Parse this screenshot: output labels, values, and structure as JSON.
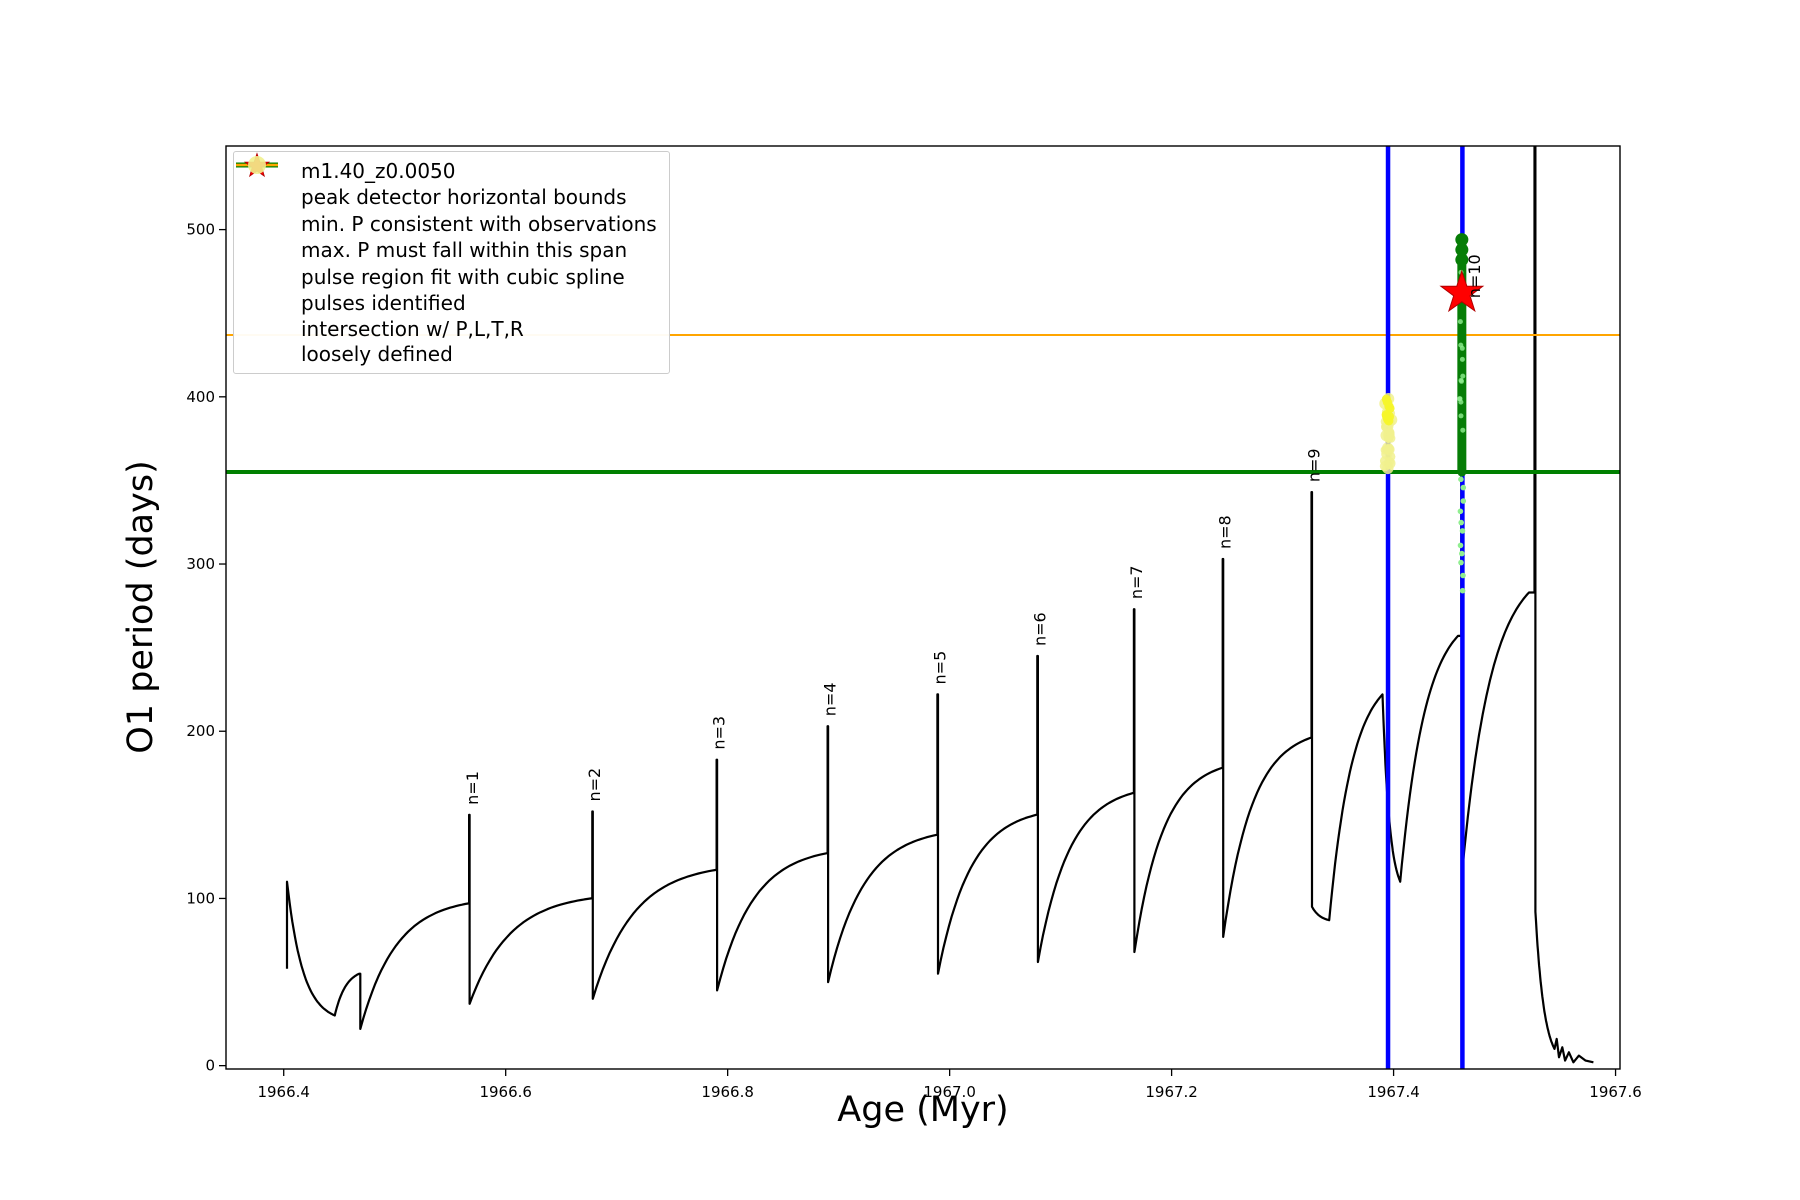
{
  "chart_data": {
    "type": "line",
    "title": "",
    "xlabel": "Age (Myr)",
    "ylabel": "O1 period (days)",
    "xlim": [
      1966.348,
      1967.604
    ],
    "ylim": [
      -2,
      550
    ],
    "x_ticks": [
      1966.4,
      1966.6,
      1966.8,
      1967.0,
      1967.2,
      1967.4,
      1967.6
    ],
    "y_ticks": [
      0,
      100,
      200,
      300,
      400,
      500
    ],
    "grid": false,
    "legend_position": "upper left",
    "legend": [
      {
        "label": "m1.40_z0.0050",
        "marker": "line-dot",
        "color": "#000000"
      },
      {
        "label": "peak detector horizontal bounds",
        "marker": "thick-line",
        "color": "#0000ff"
      },
      {
        "label": "min. P consistent with observations",
        "marker": "thick-line",
        "color": "#008000"
      },
      {
        "label": "max. P must fall within this span",
        "marker": "line",
        "color": "#ffa500"
      },
      {
        "label": "pulse region fit with cubic spline",
        "marker": "dot-small",
        "color": "#90ee90"
      },
      {
        "label": "pulses identified",
        "marker": "star",
        "color": "#ff0000"
      },
      {
        "label": "intersection w/ P,L,T,R\nloosely defined",
        "marker": "dot-large",
        "color": "#f1f18e"
      }
    ],
    "series": {
      "main": {
        "name": "m1.40_z0.0050",
        "color": "#000000",
        "linewidth": 2.2,
        "segments": [
          {
            "t": "v",
            "x": 1966.403,
            "a": 58,
            "b": 110
          },
          {
            "t": "e",
            "x0": 1966.403,
            "y0": 110,
            "x1": 1966.446,
            "y1": 30,
            "k": 3
          },
          {
            "t": "e",
            "x0": 1966.446,
            "y0": 30,
            "x1": 1966.468,
            "y1": 55,
            "k": 2.2
          },
          {
            "t": "v",
            "x": 1966.469,
            "a": 55,
            "b": 22
          },
          {
            "t": "e",
            "x0": 1966.469,
            "y0": 22,
            "x1": 1966.566,
            "y1": 97,
            "k": 3
          },
          {
            "t": "v",
            "x": 1966.567,
            "a": 97,
            "b": 150
          },
          {
            "t": "v",
            "x": 1966.5675,
            "a": 150,
            "b": 37
          },
          {
            "t": "e",
            "x0": 1966.5675,
            "y0": 37,
            "x1": 1966.677,
            "y1": 100,
            "k": 3
          },
          {
            "t": "v",
            "x": 1966.678,
            "a": 100,
            "b": 152
          },
          {
            "t": "v",
            "x": 1966.6785,
            "a": 152,
            "b": 40
          },
          {
            "t": "e",
            "x0": 1966.6785,
            "y0": 40,
            "x1": 1966.789,
            "y1": 117,
            "k": 3
          },
          {
            "t": "v",
            "x": 1966.79,
            "a": 117,
            "b": 183
          },
          {
            "t": "v",
            "x": 1966.7905,
            "a": 183,
            "b": 45
          },
          {
            "t": "e",
            "x0": 1966.7905,
            "y0": 45,
            "x1": 1966.889,
            "y1": 127,
            "k": 3
          },
          {
            "t": "v",
            "x": 1966.89,
            "a": 127,
            "b": 203
          },
          {
            "t": "v",
            "x": 1966.8905,
            "a": 203,
            "b": 50
          },
          {
            "t": "e",
            "x0": 1966.8905,
            "y0": 50,
            "x1": 1966.988,
            "y1": 138,
            "k": 3
          },
          {
            "t": "v",
            "x": 1966.989,
            "a": 138,
            "b": 222
          },
          {
            "t": "v",
            "x": 1966.9895,
            "a": 222,
            "b": 55
          },
          {
            "t": "e",
            "x0": 1966.9895,
            "y0": 55,
            "x1": 1967.078,
            "y1": 150,
            "k": 3
          },
          {
            "t": "v",
            "x": 1967.079,
            "a": 150,
            "b": 245
          },
          {
            "t": "v",
            "x": 1967.0795,
            "a": 245,
            "b": 62
          },
          {
            "t": "e",
            "x0": 1967.0795,
            "y0": 62,
            "x1": 1967.165,
            "y1": 163,
            "k": 3
          },
          {
            "t": "v",
            "x": 1967.166,
            "a": 163,
            "b": 273
          },
          {
            "t": "v",
            "x": 1967.1665,
            "a": 273,
            "b": 68
          },
          {
            "t": "e",
            "x0": 1967.1665,
            "y0": 68,
            "x1": 1967.245,
            "y1": 178,
            "k": 3
          },
          {
            "t": "v",
            "x": 1967.246,
            "a": 178,
            "b": 303
          },
          {
            "t": "v",
            "x": 1967.2465,
            "a": 303,
            "b": 77
          },
          {
            "t": "e",
            "x0": 1967.2465,
            "y0": 77,
            "x1": 1967.325,
            "y1": 196,
            "k": 3
          },
          {
            "t": "v",
            "x": 1967.326,
            "a": 196,
            "b": 343
          },
          {
            "t": "v",
            "x": 1967.3265,
            "a": 343,
            "b": 95
          },
          {
            "t": "e",
            "x0": 1967.3265,
            "y0": 95,
            "x1": 1967.342,
            "y1": 87,
            "k": 2
          },
          {
            "t": "e",
            "x0": 1967.342,
            "y0": 87,
            "x1": 1967.39,
            "y1": 222,
            "k": 2.3
          },
          {
            "t": "e",
            "x0": 1967.39,
            "y0": 222,
            "x1": 1967.406,
            "y1": 110,
            "k": 2.5
          },
          {
            "t": "e",
            "x0": 1967.406,
            "y0": 110,
            "x1": 1967.458,
            "y1": 257,
            "k": 2.3
          },
          {
            "t": "v",
            "x": 1967.461,
            "a": 257,
            "b": 497
          },
          {
            "t": "v",
            "x": 1967.462,
            "a": 497,
            "b": 117
          },
          {
            "t": "e",
            "x0": 1967.462,
            "y0": 117,
            "x1": 1967.522,
            "y1": 283,
            "k": 2.3
          },
          {
            "t": "v",
            "x": 1967.527,
            "a": 283,
            "b": 558
          },
          {
            "t": "v",
            "x": 1967.5278,
            "a": 558,
            "b": 92
          },
          {
            "t": "e",
            "x0": 1967.5278,
            "y0": 92,
            "x1": 1967.545,
            "y1": 10,
            "k": 2.2
          },
          {
            "t": "p",
            "pts": [
              [
                1967.547,
                16
              ],
              [
                1967.549,
                5
              ],
              [
                1967.552,
                11
              ],
              [
                1967.5545,
                3
              ],
              [
                1967.558,
                8
              ],
              [
                1967.562,
                2
              ],
              [
                1967.567,
                6
              ],
              [
                1967.573,
                3
              ],
              [
                1967.58,
                2
              ]
            ]
          }
        ]
      },
      "peak_detector_bounds": {
        "label": "peak detector horizontal bounds",
        "color": "#0000ff",
        "x_values": [
          1967.395,
          1967.462
        ],
        "linewidth": 4.5
      },
      "min_P_line": {
        "label": "min. P consistent with observations",
        "color": "#008000",
        "y": 355,
        "linewidth": 4
      },
      "max_P_line": {
        "label": "max. P must fall within this span",
        "color": "#ffa500",
        "y": 437,
        "linewidth": 2
      },
      "spline_region": {
        "label": "pulse region fit with cubic spline",
        "x": 1967.4615,
        "dense_y_range": [
          355,
          497
        ],
        "sparse_y_range": [
          286,
          352
        ],
        "color_light": "#90ee90",
        "color_dense": "#067d06"
      },
      "pulses": {
        "label": "pulses identified",
        "color": "#ff0000",
        "points": [
          {
            "x": 1967.4615,
            "y": 462
          }
        ]
      },
      "intersection": {
        "label": "intersection w/ P,L,T,R loosely defined",
        "x": 1967.395,
        "y_range": [
          357,
          399
        ],
        "color": "#f1f18e",
        "color_bright": "#f6f62b"
      }
    },
    "annotations": [
      {
        "label": "n=1",
        "x": 1966.568,
        "y": 150
      },
      {
        "label": "n=2",
        "x": 1966.678,
        "y": 152
      },
      {
        "label": "n=3",
        "x": 1966.79,
        "y": 183
      },
      {
        "label": "n=4",
        "x": 1966.89,
        "y": 203
      },
      {
        "label": "n=5",
        "x": 1966.989,
        "y": 222
      },
      {
        "label": "n=6",
        "x": 1967.079,
        "y": 245
      },
      {
        "label": "n=7",
        "x": 1967.166,
        "y": 273
      },
      {
        "label": "n=8",
        "x": 1967.246,
        "y": 303
      },
      {
        "label": "n=9",
        "x": 1967.326,
        "y": 343
      },
      {
        "label": "n=10",
        "x": 1967.4615,
        "y": 453,
        "dx": 18
      }
    ]
  }
}
